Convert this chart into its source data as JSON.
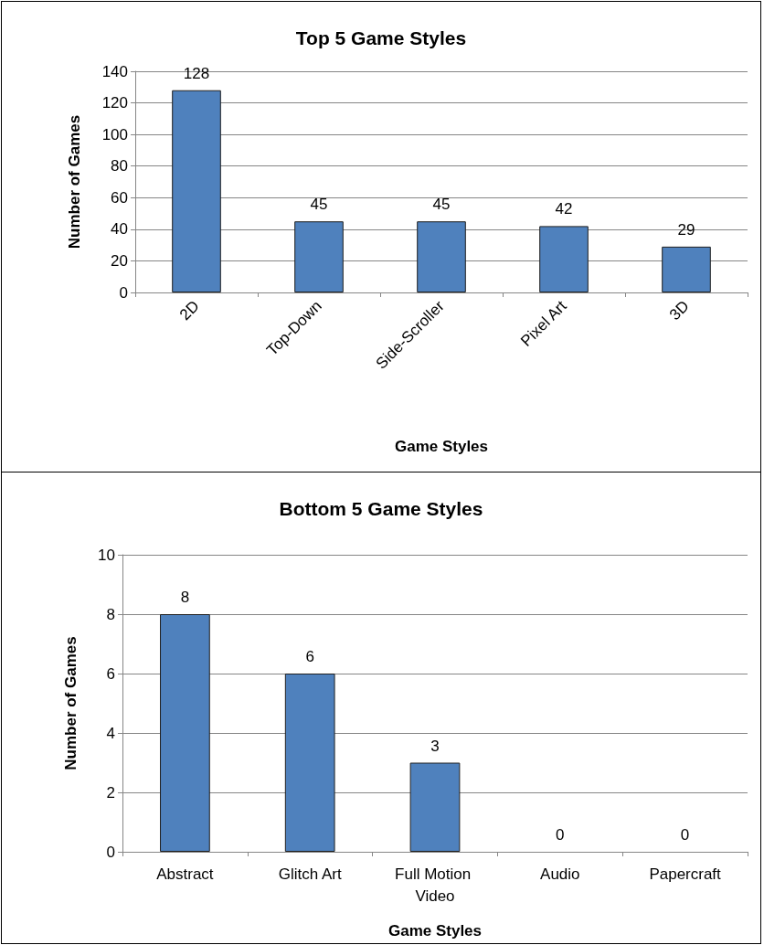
{
  "chart_data": [
    {
      "type": "bar",
      "title": "Top 5 Game Styles",
      "xlabel": "Game Styles",
      "ylabel": "Number of Games",
      "categories": [
        "2D",
        "Top-Down",
        "Side-Scroller",
        "Pixel Art",
        "3D"
      ],
      "values": [
        128,
        45,
        45,
        42,
        29
      ],
      "color": "#4f81bd",
      "ylim": [
        0,
        140
      ],
      "yticks": [
        0,
        20,
        40,
        60,
        80,
        100,
        120,
        140
      ],
      "grid": "y",
      "data_labels": true
    },
    {
      "type": "bar",
      "title": "Bottom 5 Game Styles",
      "xlabel": "Game Styles",
      "ylabel": "Number of Games",
      "categories": [
        "Abstract",
        "Glitch Art",
        "Full Motion Video",
        "Audio",
        "Papercraft"
      ],
      "values": [
        8,
        6,
        3,
        0,
        0
      ],
      "color": "#4f81bd",
      "ylim": [
        0,
        10
      ],
      "yticks": [
        0,
        2,
        4,
        6,
        8,
        10
      ],
      "grid": "y",
      "data_labels": true
    }
  ]
}
